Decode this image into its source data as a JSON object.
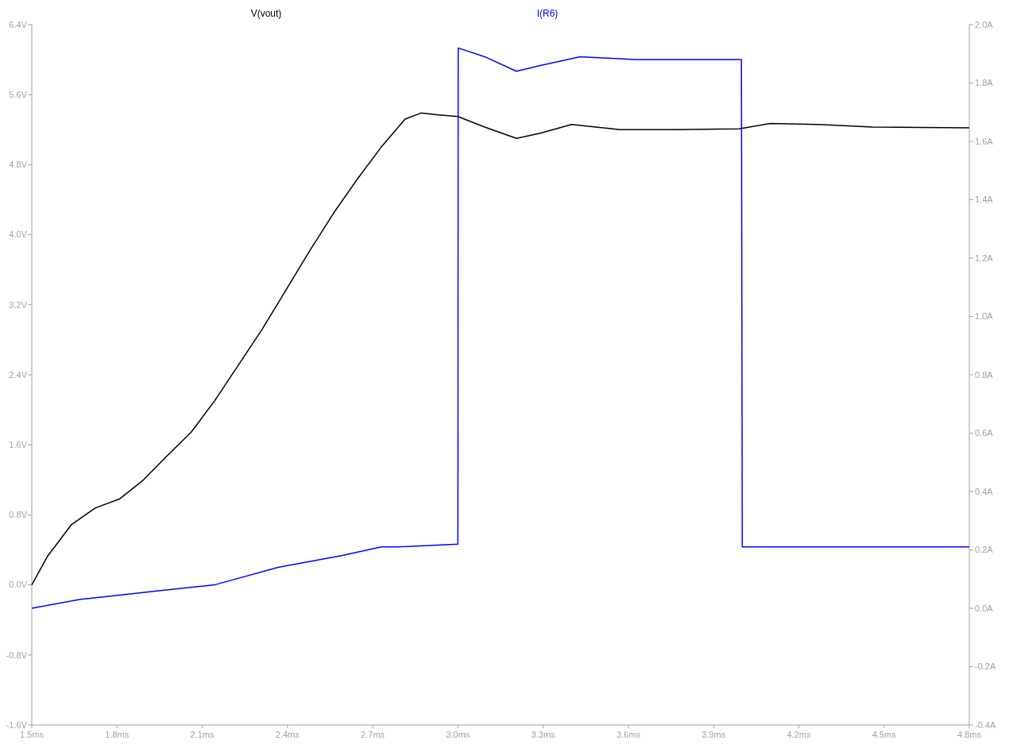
{
  "chart_data": {
    "type": "line",
    "legend": "top",
    "grid": false,
    "xlim": [
      1.5,
      4.8
    ],
    "xticks": [
      {
        "value": 1.5,
        "label": "1.5ms"
      },
      {
        "value": 1.8,
        "label": "1.8ms"
      },
      {
        "value": 2.1,
        "label": "2.1ms"
      },
      {
        "value": 2.4,
        "label": "2.4ms"
      },
      {
        "value": 2.7,
        "label": "2.7ms"
      },
      {
        "value": 3.0,
        "label": "3.0ms"
      },
      {
        "value": 3.3,
        "label": "3.3ms"
      },
      {
        "value": 3.6,
        "label": "3.6ms"
      },
      {
        "value": 3.9,
        "label": "3.9ms"
      },
      {
        "value": 4.2,
        "label": "4.2ms"
      },
      {
        "value": 4.5,
        "label": "4.5ms"
      },
      {
        "value": 4.8,
        "label": "4.8ms"
      }
    ],
    "ylim": [
      -1.6,
      6.4
    ],
    "yticks": [
      {
        "value": -1.6,
        "label": "-1.6V"
      },
      {
        "value": -0.8,
        "label": "-0.8V"
      },
      {
        "value": 0,
        "label": "0.0V"
      },
      {
        "value": 0.8,
        "label": "0.8V"
      },
      {
        "value": 1.6,
        "label": "1.6V"
      },
      {
        "value": 2.4,
        "label": "2.4V"
      },
      {
        "value": 3.2,
        "label": "3.2V"
      },
      {
        "value": 4.0,
        "label": "4.0V"
      },
      {
        "value": 4.8,
        "label": "4.8V"
      },
      {
        "value": 5.6,
        "label": "5.6V"
      },
      {
        "value": 6.4,
        "label": "6.4V"
      }
    ],
    "y2lim": [
      -0.4,
      2.0
    ],
    "y2ticks": [
      {
        "value": -0.4,
        "label": "-0.4A"
      },
      {
        "value": -0.2,
        "label": "-0.2A"
      },
      {
        "value": 0,
        "label": "0.0A"
      },
      {
        "value": 0.2,
        "label": "0.2A"
      },
      {
        "value": 0.4,
        "label": "0.4A"
      },
      {
        "value": 0.6,
        "label": "0.6A"
      },
      {
        "value": 0.8,
        "label": "0.8A"
      },
      {
        "value": 1.0,
        "label": "1.0A"
      },
      {
        "value": 1.2,
        "label": "1.2A"
      },
      {
        "value": 1.4,
        "label": "1.4A"
      },
      {
        "value": 1.6,
        "label": "1.6A"
      },
      {
        "value": 1.8,
        "label": "1.8A"
      },
      {
        "value": 2.0,
        "label": "2.0A"
      }
    ],
    "series": [
      {
        "name": "V(vout)",
        "color": "#000000",
        "x": [
          1.5,
          1.556,
          1.64,
          1.724,
          1.808,
          1.89,
          1.975,
          2.06,
          2.143,
          2.227,
          2.311,
          2.395,
          2.479,
          2.563,
          2.647,
          2.73,
          2.814,
          2.87,
          2.926,
          3.0,
          3.094,
          3.206,
          3.29,
          3.4,
          3.57,
          3.765,
          3.99,
          4.1,
          4.27,
          4.46,
          4.8
        ],
        "values": [
          0.0,
          0.33,
          0.69,
          0.88,
          0.98,
          1.19,
          1.47,
          1.74,
          2.1,
          2.51,
          2.92,
          3.37,
          3.82,
          4.25,
          4.64,
          5.0,
          5.32,
          5.39,
          5.37,
          5.35,
          5.23,
          5.1,
          5.16,
          5.26,
          5.2,
          5.2,
          5.21,
          5.27,
          5.26,
          5.23,
          5.22
        ]
      },
      {
        "name": "I(R6)",
        "color": "#0000ff",
        "axis": "y2",
        "x": [
          1.5,
          1.668,
          1.947,
          2.143,
          2.367,
          2.59,
          2.73,
          2.786,
          3.0,
          3.001,
          3.094,
          3.206,
          3.29,
          3.43,
          3.625,
          3.998,
          4.001,
          4.8
        ],
        "values": [
          0.0,
          0.03,
          0.06,
          0.08,
          0.14,
          0.18,
          0.21,
          0.21,
          0.22,
          1.92,
          1.89,
          1.84,
          1.86,
          1.89,
          1.88,
          1.88,
          0.21,
          0.21
        ]
      }
    ]
  }
}
